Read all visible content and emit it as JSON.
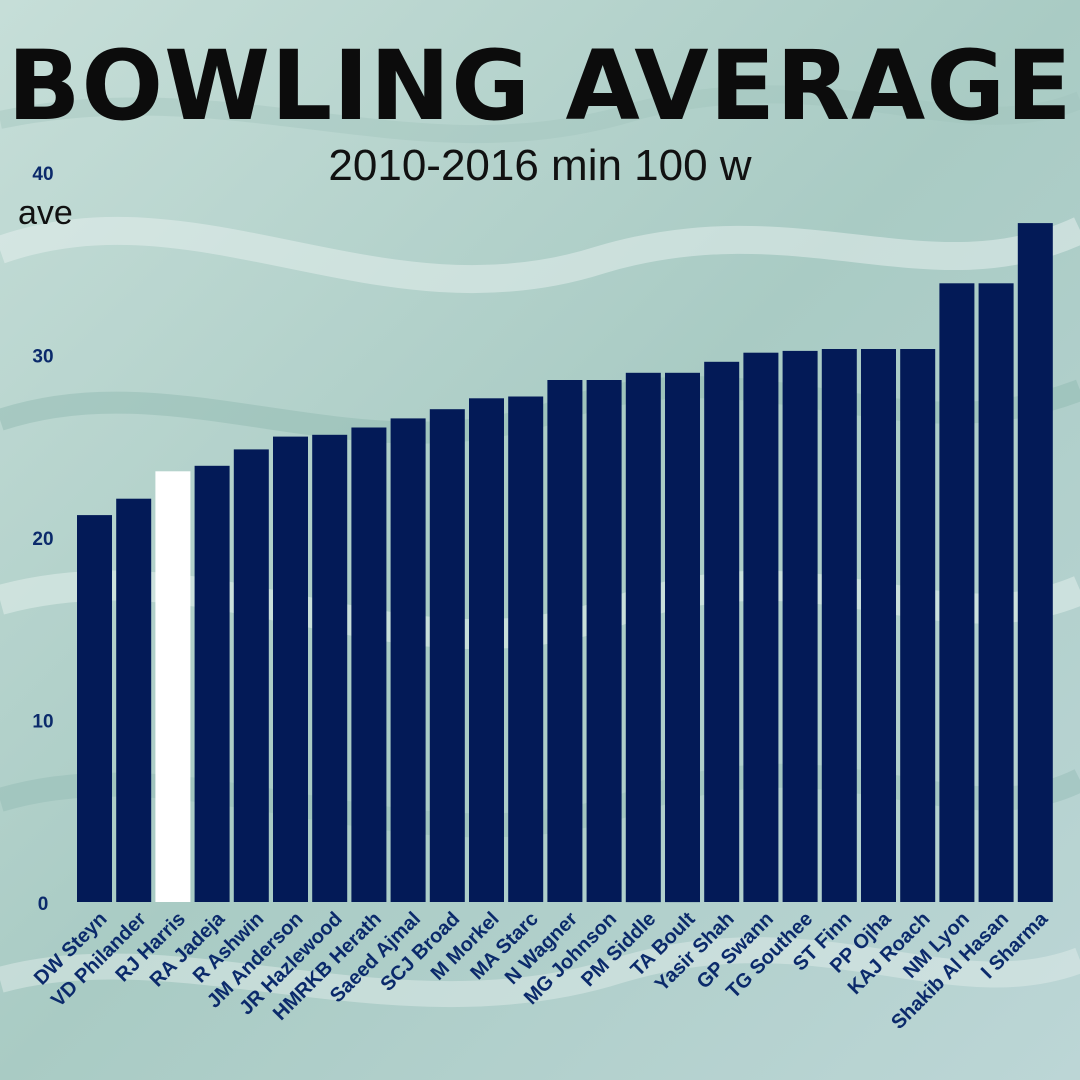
{
  "chart_data": {
    "type": "bar",
    "title": "BOWLING AVERAGE",
    "subtitle": "2010-2016 min 100 w",
    "xlabel": "",
    "ylabel": "ave",
    "ylim": [
      0,
      40
    ],
    "yticks": [
      0,
      10,
      20,
      30,
      40
    ],
    "grid": false,
    "highlight": "RJ Harris",
    "categories": [
      "DW Steyn",
      "VD Philander",
      "RJ Harris",
      "RA Jadeja",
      "R Ashwin",
      "JM Anderson",
      "JR Hazlewood",
      "HMRKB Herath",
      "Saeed Ajmal",
      "SCJ Broad",
      "M Morkel",
      "MA Starc",
      "N Wagner",
      "MG Johnson",
      "PM Siddle",
      "TA Boult",
      "Yasir Shah",
      "GP Swann",
      "TG Southee",
      "ST Finn",
      "PP Ojha",
      "KAJ Roach",
      "NM Lyon",
      "Shakib Al Hasan",
      "I Sharma"
    ],
    "values": [
      21.2,
      22.1,
      23.6,
      23.9,
      24.8,
      25.5,
      25.6,
      26.0,
      26.5,
      27.0,
      27.6,
      27.7,
      28.6,
      28.6,
      29.0,
      29.0,
      29.6,
      30.1,
      30.2,
      30.3,
      30.3,
      30.3,
      33.9,
      33.9,
      37.2
    ]
  },
  "colors": {
    "bar": "#031a57",
    "highlight_bar": "#ffffff",
    "tick_label": "#0b2a6b",
    "category_label": "#0b2a6b",
    "text": "#0c0c0c"
  }
}
